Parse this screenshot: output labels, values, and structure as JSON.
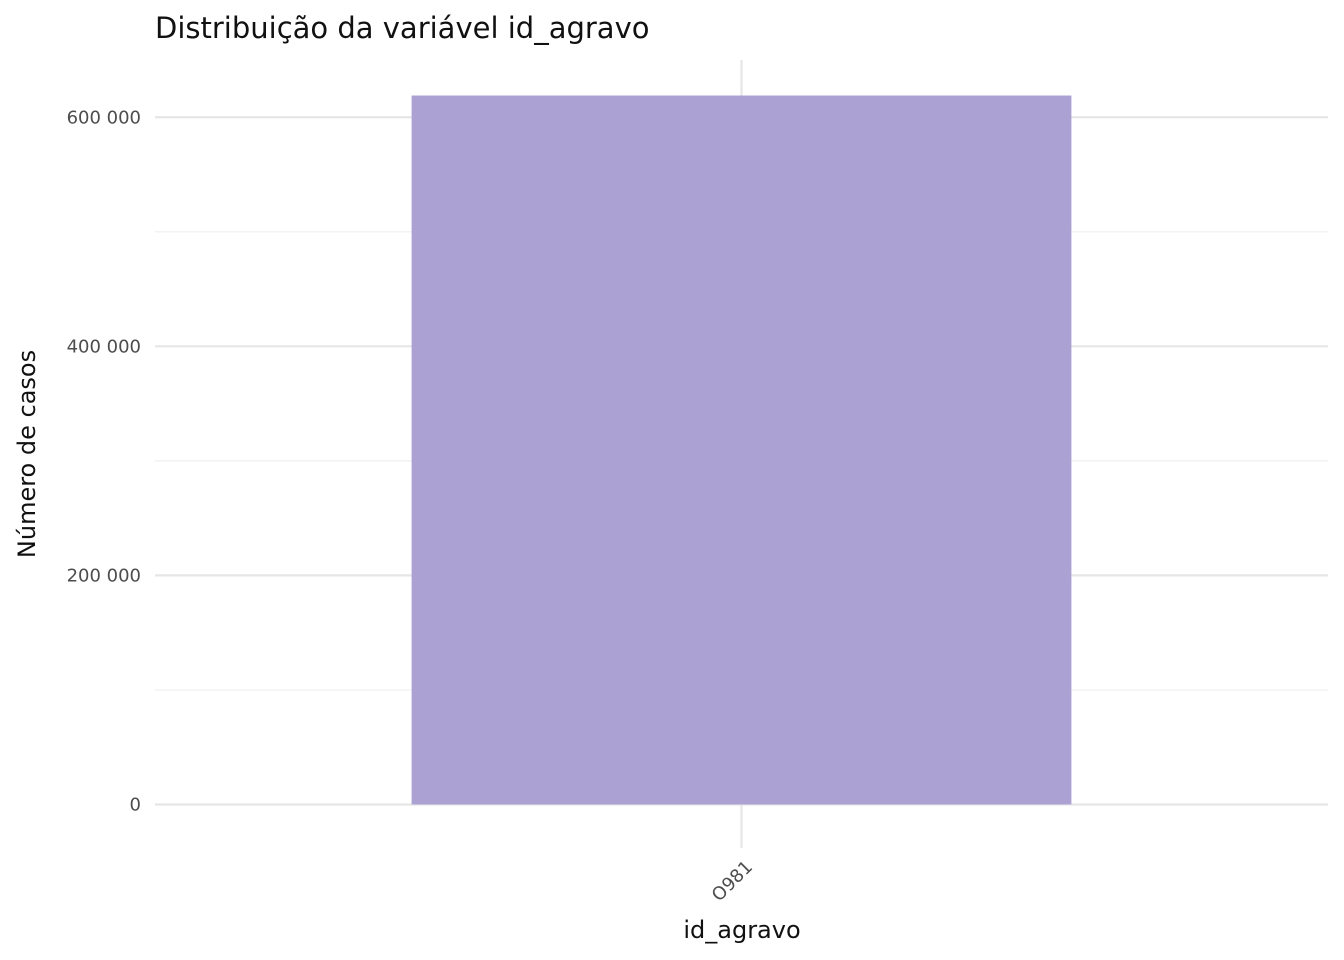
{
  "chart_data": {
    "type": "bar",
    "title": "Distribuição da variável  id_agravo",
    "xlabel": "id_agravo",
    "ylabel": "Número de casos",
    "categories": [
      "O981"
    ],
    "values": [
      619000
    ],
    "ylim": [
      -38000,
      650000
    ],
    "yticks": [
      0,
      200000,
      400000,
      600000
    ],
    "ytick_labels": [
      "0",
      "200 000",
      "400 000",
      "600 000"
    ],
    "y_minor_ticks": [
      100000,
      300000,
      500000
    ],
    "grid": true,
    "legend": "none",
    "bar_color": "#aca1d3"
  }
}
